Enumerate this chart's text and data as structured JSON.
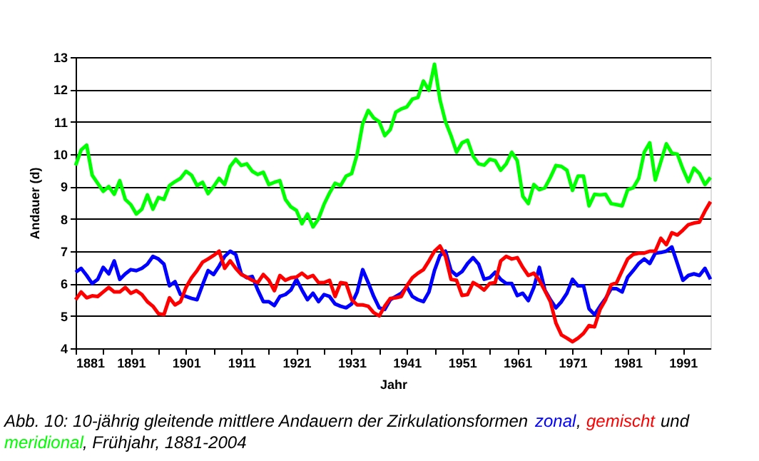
{
  "chart_data": {
    "type": "line",
    "xlabel": "Jahr",
    "ylabel": "Andauer (d)",
    "xlim": [
      1881,
      1996
    ],
    "xticks": [
      1881,
      {
        "value": 1886,
        "label": null
      },
      1891,
      {
        "value": 1896,
        "label": null
      },
      1901,
      {
        "value": 1906,
        "label": null
      },
      1911,
      {
        "value": 1916,
        "label": null
      },
      1921,
      {
        "value": 1926,
        "label": null
      },
      1931,
      {
        "value": 1936,
        "label": null
      },
      1941,
      {
        "value": 1946,
        "label": null
      },
      1951,
      {
        "value": 1956,
        "label": null
      },
      1961,
      {
        "value": 1966,
        "label": null
      },
      1971,
      {
        "value": 1976,
        "label": null
      },
      1981,
      {
        "value": 1986,
        "label": null
      },
      1991
    ],
    "ylim": [
      4,
      13
    ],
    "yticks": [
      4,
      5,
      6,
      7,
      8,
      9,
      10,
      11,
      12,
      13
    ],
    "grid": "y",
    "legend": false,
    "marker": "none",
    "line_style": "solid",
    "x": [
      1881,
      1882,
      1883,
      1884,
      1885,
      1886,
      1887,
      1888,
      1889,
      1890,
      1891,
      1892,
      1893,
      1894,
      1895,
      1896,
      1897,
      1898,
      1899,
      1900,
      1901,
      1902,
      1903,
      1904,
      1905,
      1906,
      1907,
      1908,
      1909,
      1910,
      1911,
      1912,
      1913,
      1914,
      1915,
      1916,
      1917,
      1918,
      1919,
      1920,
      1921,
      1922,
      1923,
      1924,
      1925,
      1926,
      1927,
      1928,
      1929,
      1930,
      1931,
      1932,
      1933,
      1934,
      1935,
      1936,
      1937,
      1938,
      1939,
      1940,
      1941,
      1942,
      1943,
      1944,
      1945,
      1946,
      1947,
      1948,
      1949,
      1950,
      1951,
      1952,
      1953,
      1954,
      1955,
      1956,
      1957,
      1958,
      1959,
      1960,
      1961,
      1962,
      1963,
      1964,
      1965,
      1966,
      1967,
      1968,
      1969,
      1970,
      1971,
      1972,
      1973,
      1974,
      1975,
      1976,
      1977,
      1978,
      1979,
      1980,
      1981,
      1982,
      1983,
      1984,
      1985,
      1986,
      1987,
      1988,
      1989,
      1990,
      1991,
      1992,
      1993,
      1994,
      1995,
      1996
    ],
    "series": [
      {
        "name": "zonal",
        "color": "#0000ff",
        "values": [
          6.35,
          6.47,
          6.25,
          6.0,
          6.13,
          6.5,
          6.3,
          6.7,
          6.13,
          6.3,
          6.43,
          6.4,
          6.47,
          6.6,
          6.84,
          6.76,
          6.6,
          5.93,
          6.06,
          5.66,
          5.6,
          5.54,
          5.5,
          5.96,
          6.4,
          6.28,
          6.54,
          6.84,
          7.0,
          6.9,
          6.3,
          6.18,
          6.22,
          5.8,
          5.44,
          5.44,
          5.32,
          5.6,
          5.66,
          5.8,
          6.13,
          5.8,
          5.5,
          5.7,
          5.44,
          5.66,
          5.6,
          5.37,
          5.3,
          5.25,
          5.37,
          5.74,
          6.43,
          6.03,
          5.6,
          5.25,
          5.2,
          5.5,
          5.6,
          5.7,
          5.9,
          5.6,
          5.5,
          5.44,
          5.74,
          6.4,
          6.87,
          7.0,
          6.4,
          6.25,
          6.37,
          6.62,
          6.8,
          6.6,
          6.13,
          6.18,
          6.35,
          6.13,
          6.0,
          6.0,
          5.63,
          5.7,
          5.47,
          5.88,
          6.5,
          5.8,
          5.5,
          5.25,
          5.44,
          5.7,
          6.13,
          5.93,
          5.93,
          5.22,
          5.04,
          5.3,
          5.54,
          5.84,
          5.84,
          5.74,
          6.2,
          6.4,
          6.62,
          6.76,
          6.62,
          6.94,
          6.96,
          7.0,
          7.13,
          6.62,
          6.1,
          6.25,
          6.3,
          6.25,
          6.47,
          6.13
        ]
      },
      {
        "name": "gemischt",
        "color": "#ff0000",
        "values": [
          5.5,
          5.74,
          5.56,
          5.62,
          5.6,
          5.74,
          5.88,
          5.74,
          5.74,
          5.88,
          5.7,
          5.78,
          5.66,
          5.44,
          5.3,
          5.07,
          5.04,
          5.56,
          5.34,
          5.44,
          5.88,
          6.18,
          6.4,
          6.66,
          6.76,
          6.87,
          7.0,
          6.47,
          6.7,
          6.47,
          6.28,
          6.2,
          6.1,
          6.03,
          6.28,
          6.1,
          5.78,
          6.25,
          6.1,
          6.18,
          6.2,
          6.32,
          6.18,
          6.25,
          6.03,
          6.03,
          6.1,
          5.6,
          6.03,
          6.0,
          5.5,
          5.34,
          5.34,
          5.3,
          5.1,
          5.0,
          5.3,
          5.54,
          5.56,
          5.6,
          5.93,
          6.18,
          6.32,
          6.43,
          6.7,
          7.0,
          7.16,
          6.84,
          6.13,
          6.1,
          5.63,
          5.66,
          6.03,
          5.93,
          5.8,
          6.0,
          6.03,
          6.7,
          6.84,
          6.76,
          6.8,
          6.5,
          6.25,
          6.32,
          6.1,
          5.78,
          5.44,
          4.78,
          4.41,
          4.31,
          4.2,
          4.31,
          4.46,
          4.7,
          4.66,
          5.2,
          5.5,
          5.96,
          6.03,
          6.4,
          6.76,
          6.9,
          6.94,
          6.94,
          7.0,
          7.0,
          7.4,
          7.2,
          7.57,
          7.5,
          7.65,
          7.82,
          7.87,
          7.9,
          8.24,
          8.53
        ]
      },
      {
        "name": "meridional",
        "color": "#00ff00",
        "values": [
          9.65,
          10.13,
          10.28,
          9.35,
          9.1,
          8.85,
          9.0,
          8.76,
          9.18,
          8.6,
          8.44,
          8.15,
          8.3,
          8.74,
          8.3,
          8.66,
          8.6,
          9.03,
          9.15,
          9.25,
          9.47,
          9.35,
          9.03,
          9.13,
          8.78,
          9.0,
          9.25,
          9.06,
          9.62,
          9.84,
          9.65,
          9.7,
          9.47,
          9.37,
          9.44,
          9.06,
          9.13,
          9.18,
          8.6,
          8.37,
          8.26,
          7.85,
          8.15,
          7.75,
          8.0,
          8.45,
          8.8,
          9.1,
          9.03,
          9.32,
          9.4,
          10.0,
          10.94,
          11.35,
          11.12,
          11.0,
          10.57,
          10.76,
          11.3,
          11.4,
          11.46,
          11.7,
          11.75,
          12.26,
          11.97,
          12.78,
          11.68,
          11.0,
          10.57,
          10.06,
          10.35,
          10.43,
          9.94,
          9.7,
          9.66,
          9.84,
          9.8,
          9.5,
          9.7,
          10.06,
          9.8,
          8.7,
          8.47,
          9.06,
          8.9,
          8.96,
          9.28,
          9.65,
          9.62,
          9.5,
          8.88,
          9.32,
          9.32,
          8.4,
          8.76,
          8.74,
          8.76,
          8.47,
          8.44,
          8.4,
          8.9,
          8.96,
          9.25,
          10.06,
          10.35,
          9.2,
          9.76,
          10.32,
          10.03,
          10.0,
          9.54,
          9.15,
          9.57,
          9.4,
          9.06,
          9.28
        ]
      }
    ],
    "annotations": [
      "Abb. 10: 10-jährig gleitende mittlere Andauern der Zirkulationsformen",
      ",",
      "und",
      ", Frühjahr, 1881-2004"
    ]
  }
}
